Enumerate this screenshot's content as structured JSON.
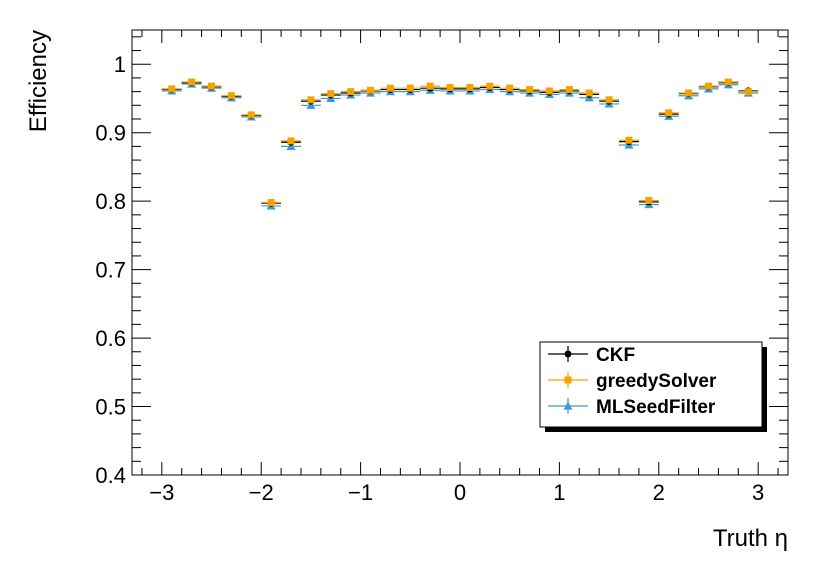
{
  "chart_data": {
    "type": "scatter",
    "xlabel": "Truth η",
    "ylabel": "Efficiency",
    "xlim": [
      -3.3,
      3.3
    ],
    "ylim": [
      0.4,
      1.05
    ],
    "x_major_ticks": [
      -3,
      -2,
      -1,
      0,
      1,
      2,
      3
    ],
    "x_tick_labels": [
      "−3",
      "−2",
      "−1",
      "0",
      "1",
      "2",
      "3"
    ],
    "y_major_ticks": [
      0.4,
      0.5,
      0.6,
      0.7,
      0.8,
      0.9,
      1.0
    ],
    "y_tick_labels": [
      "0.4",
      "0.5",
      "0.6",
      "0.7",
      "0.8",
      "0.9",
      "1"
    ],
    "grid": false,
    "legend_position": "bottom-right",
    "x": [
      -2.9,
      -2.7,
      -2.5,
      -2.3,
      -2.1,
      -1.9,
      -1.7,
      -1.5,
      -1.3,
      -1.1,
      -0.9,
      -0.7,
      -0.5,
      -0.3,
      -0.1,
      0.1,
      0.3,
      0.5,
      0.7,
      0.9,
      1.1,
      1.3,
      1.5,
      1.7,
      1.9,
      2.1,
      2.3,
      2.5,
      2.7,
      2.9
    ],
    "x_bin_half_width": 0.1,
    "series": [
      {
        "name": "CKF",
        "color": "#000000",
        "marker": "circle",
        "values": [
          0.963,
          0.973,
          0.967,
          0.953,
          0.925,
          0.797,
          0.886,
          0.946,
          0.955,
          0.958,
          0.961,
          0.963,
          0.963,
          0.965,
          0.964,
          0.964,
          0.966,
          0.963,
          0.961,
          0.959,
          0.961,
          0.956,
          0.946,
          0.887,
          0.799,
          0.927,
          0.957,
          0.967,
          0.973,
          0.961
        ]
      },
      {
        "name": "greedySolver",
        "color": "#f5a200",
        "marker": "square",
        "values": [
          0.964,
          0.974,
          0.968,
          0.954,
          0.926,
          0.798,
          0.888,
          0.948,
          0.957,
          0.96,
          0.962,
          0.965,
          0.965,
          0.968,
          0.966,
          0.966,
          0.968,
          0.965,
          0.963,
          0.961,
          0.963,
          0.958,
          0.948,
          0.889,
          0.801,
          0.929,
          0.958,
          0.968,
          0.974,
          0.96
        ]
      },
      {
        "name": "MLSeedFilter",
        "color": "#3a9ad9",
        "marker": "triangle",
        "values": [
          0.961,
          0.971,
          0.965,
          0.951,
          0.923,
          0.793,
          0.88,
          0.94,
          0.95,
          0.955,
          0.958,
          0.96,
          0.96,
          0.962,
          0.961,
          0.961,
          0.963,
          0.96,
          0.958,
          0.956,
          0.958,
          0.951,
          0.942,
          0.882,
          0.795,
          0.924,
          0.954,
          0.964,
          0.97,
          0.958
        ]
      }
    ]
  }
}
